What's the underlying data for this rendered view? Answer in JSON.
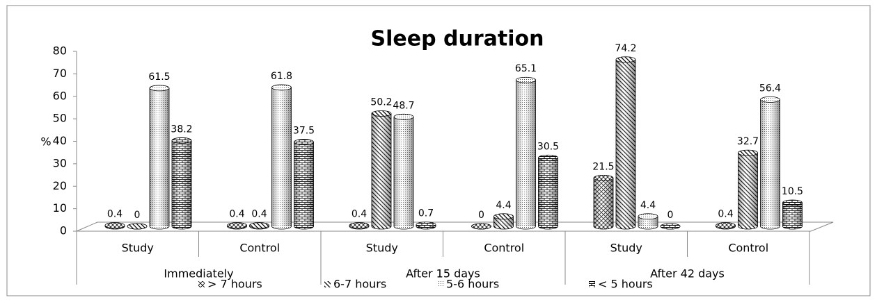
{
  "chart_data": {
    "type": "bar",
    "title": "Sleep duration",
    "y_label": "%",
    "groups": [
      {
        "name": "Immediately",
        "categories": [
          "Study",
          "Control"
        ]
      },
      {
        "name": "After 15 days",
        "categories": [
          "Study",
          "Control"
        ]
      },
      {
        "name": "After 42 days",
        "categories": [
          "Study",
          "Control"
        ]
      }
    ],
    "series": [
      {
        "name": "> 7 hours",
        "color": "#000000",
        "pattern": "crosshatch",
        "values": [
          0.4,
          0.4,
          0.4,
          0,
          21.5,
          0.4
        ]
      },
      {
        "name": "6-7 hours",
        "color": "#000000",
        "pattern": "diagonal",
        "values": [
          0,
          0.4,
          50.2,
          4.4,
          74.2,
          32.7
        ]
      },
      {
        "name": "5-6 hours",
        "color": "#000000",
        "pattern": "dots",
        "values": [
          61.5,
          61.8,
          48.7,
          65.1,
          4.4,
          56.4
        ]
      },
      {
        "name": "< 5 hours",
        "color": "#000000",
        "pattern": "brick",
        "values": [
          38.2,
          37.5,
          0.7,
          30.5,
          0,
          10.5
        ]
      }
    ],
    "ylim": [
      0,
      80
    ],
    "yticks": [
      0,
      10,
      20,
      30,
      40,
      50,
      60,
      70,
      80
    ],
    "legend": "bottom"
  }
}
